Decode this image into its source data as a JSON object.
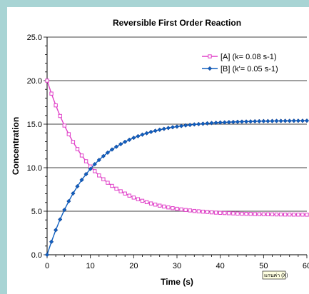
{
  "chart_data": {
    "type": "line",
    "title": "Reversible First Order Reaction",
    "xlabel": "Time (s)",
    "ylabel": "Concentration",
    "xlim": [
      0,
      60
    ],
    "ylim": [
      0,
      25
    ],
    "x_ticks": [
      "0",
      "10",
      "20",
      "30",
      "40",
      "50",
      "60"
    ],
    "y_ticks": [
      "0.0",
      "5.0",
      "10.0",
      "15.0",
      "20.0",
      "25.0"
    ],
    "grid": "horizontal",
    "legend_position": "top-right",
    "tooltip": "แกนค่า (X)",
    "x": [
      0,
      1,
      2,
      3,
      4,
      5,
      6,
      7,
      8,
      9,
      10,
      11,
      12,
      13,
      14,
      15,
      16,
      17,
      18,
      19,
      20,
      21,
      22,
      23,
      24,
      25,
      26,
      27,
      28,
      29,
      30,
      31,
      32,
      33,
      34,
      35,
      36,
      37,
      38,
      39,
      40,
      41,
      42,
      43,
      44,
      45,
      46,
      47,
      48,
      49,
      50,
      51,
      52,
      53,
      54,
      55,
      56,
      57,
      58,
      59,
      60
    ],
    "series": [
      {
        "name": "[A] (k= 0.08 s-1)",
        "color": "#e040c8",
        "marker": "square",
        "values": [
          20.0,
          18.51,
          17.16,
          15.94,
          14.84,
          13.85,
          12.95,
          12.14,
          11.4,
          10.74,
          10.14,
          9.6,
          9.11,
          8.67,
          8.27,
          7.91,
          7.59,
          7.29,
          7.03,
          6.79,
          6.57,
          6.38,
          6.2,
          6.04,
          5.89,
          5.76,
          5.64,
          5.54,
          5.44,
          5.35,
          5.28,
          5.21,
          5.14,
          5.09,
          5.03,
          4.99,
          4.95,
          4.91,
          4.87,
          4.84,
          4.81,
          4.79,
          4.77,
          4.75,
          4.73,
          4.71,
          4.7,
          4.69,
          4.67,
          4.66,
          4.65,
          4.65,
          4.64,
          4.63,
          4.63,
          4.62,
          4.62,
          4.61,
          4.61,
          4.61,
          4.6
        ]
      },
      {
        "name": "[B] (k'= 0.05 s-1)",
        "color": "#1060c0",
        "marker": "diamond",
        "values": [
          0.0,
          1.49,
          2.84,
          4.06,
          5.16,
          6.15,
          7.05,
          7.86,
          8.6,
          9.26,
          9.86,
          10.4,
          10.89,
          11.33,
          11.73,
          12.09,
          12.41,
          12.71,
          12.97,
          13.21,
          13.43,
          13.62,
          13.8,
          13.96,
          14.11,
          14.24,
          14.36,
          14.46,
          14.56,
          14.65,
          14.72,
          14.79,
          14.86,
          14.91,
          14.97,
          15.01,
          15.05,
          15.09,
          15.13,
          15.16,
          15.19,
          15.21,
          15.23,
          15.25,
          15.27,
          15.29,
          15.3,
          15.31,
          15.33,
          15.34,
          15.35,
          15.35,
          15.36,
          15.37,
          15.37,
          15.38,
          15.38,
          15.39,
          15.39,
          15.39,
          15.4
        ]
      }
    ]
  }
}
